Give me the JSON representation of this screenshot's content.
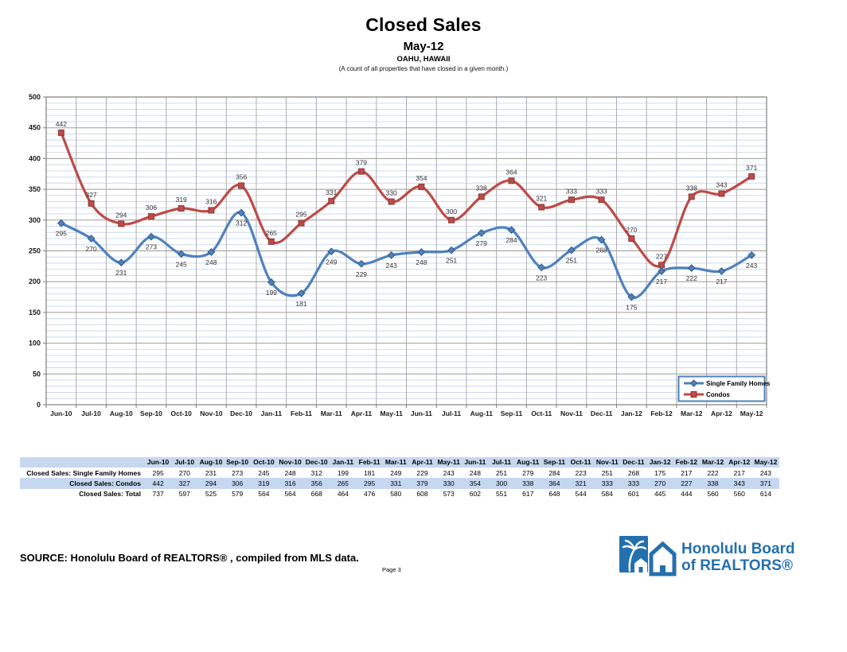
{
  "header": {
    "title": "Closed Sales",
    "subtitle": "May-12",
    "location": "OAHU, HAWAII",
    "description": "(A count of all properties that have closed in a given month.)"
  },
  "chart_data": {
    "type": "line",
    "title": "Closed Sales",
    "categories": [
      "Jun-10",
      "Jul-10",
      "Aug-10",
      "Sep-10",
      "Oct-10",
      "Nov-10",
      "Dec-10",
      "Jan-11",
      "Feb-11",
      "Mar-11",
      "Apr-11",
      "May-11",
      "Jun-11",
      "Jul-11",
      "Aug-11",
      "Sep-11",
      "Oct-11",
      "Nov-11",
      "Dec-11",
      "Jan-12",
      "Feb-12",
      "Mar-12",
      "Apr-12",
      "May-12"
    ],
    "series": [
      {
        "name": "Single Family Homes",
        "color": "#4f81bd",
        "marker_edge": "#2f5a8b",
        "marker": "diamond",
        "label_position": "below",
        "values": [
          295,
          270,
          231,
          273,
          245,
          248,
          312,
          199,
          181,
          249,
          229,
          243,
          248,
          251,
          279,
          284,
          223,
          251,
          268,
          175,
          217,
          222,
          217,
          243
        ]
      },
      {
        "name": "Condos",
        "color": "#be4b48",
        "marker_edge": "#8c3836",
        "marker": "square",
        "label_position": "above",
        "values": [
          442,
          327,
          294,
          306,
          319,
          316,
          356,
          265,
          295,
          331,
          379,
          330,
          354,
          300,
          338,
          364,
          321,
          333,
          333,
          270,
          227,
          338,
          343,
          371
        ]
      }
    ],
    "ylim": [
      0,
      500
    ],
    "y_major_step": 50,
    "y_minor_step": 10,
    "grid": true,
    "legend_position": "bottom-right",
    "show_data_labels": true
  },
  "table": {
    "columns": [
      "Jun-10",
      "Jul-10",
      "Aug-10",
      "Sep-10",
      "Oct-10",
      "Nov-10",
      "Dec-10",
      "Jan-11",
      "Feb-11",
      "Mar-11",
      "Apr-11",
      "May-11",
      "Jun-11",
      "Jul-11",
      "Aug-11",
      "Sep-11",
      "Oct-11",
      "Nov-11",
      "Dec-11",
      "Jan-12",
      "Feb-12",
      "Mar-12",
      "Apr-12",
      "May-12"
    ],
    "rows": [
      {
        "label": "Closed Sales: Single Family Homes",
        "shaded": false,
        "values": [
          295,
          270,
          231,
          273,
          245,
          248,
          312,
          199,
          181,
          249,
          229,
          243,
          248,
          251,
          279,
          284,
          223,
          251,
          268,
          175,
          217,
          222,
          217,
          243
        ]
      },
      {
        "label": "Closed Sales: Condos",
        "shaded": true,
        "values": [
          442,
          327,
          294,
          306,
          319,
          316,
          356,
          265,
          295,
          331,
          379,
          330,
          354,
          300,
          338,
          364,
          321,
          333,
          333,
          270,
          227,
          338,
          343,
          371
        ]
      },
      {
        "label": "Closed Sales: Total",
        "shaded": false,
        "values": [
          737,
          597,
          525,
          579,
          564,
          564,
          668,
          464,
          476,
          580,
          608,
          573,
          602,
          551,
          617,
          648,
          544,
          584,
          601,
          445,
          444,
          560,
          560,
          614
        ]
      }
    ]
  },
  "footer": {
    "source": "SOURCE:  Honolulu Board of REALTORS® , compiled from MLS data.",
    "page": "Page 3",
    "logo": {
      "line1": "Honolulu Board",
      "line2": "of REALTORS®",
      "color": "#2470ae"
    }
  },
  "colors": {
    "minor_grid": "#cbdbef",
    "major_grid": "#9b9b9b",
    "vertical_grid": "#ababab",
    "plot_border": "#7f7f7f",
    "legend_border": "#4f81bd",
    "data_label": "#333333",
    "table_shade": "#c6d8f0"
  }
}
